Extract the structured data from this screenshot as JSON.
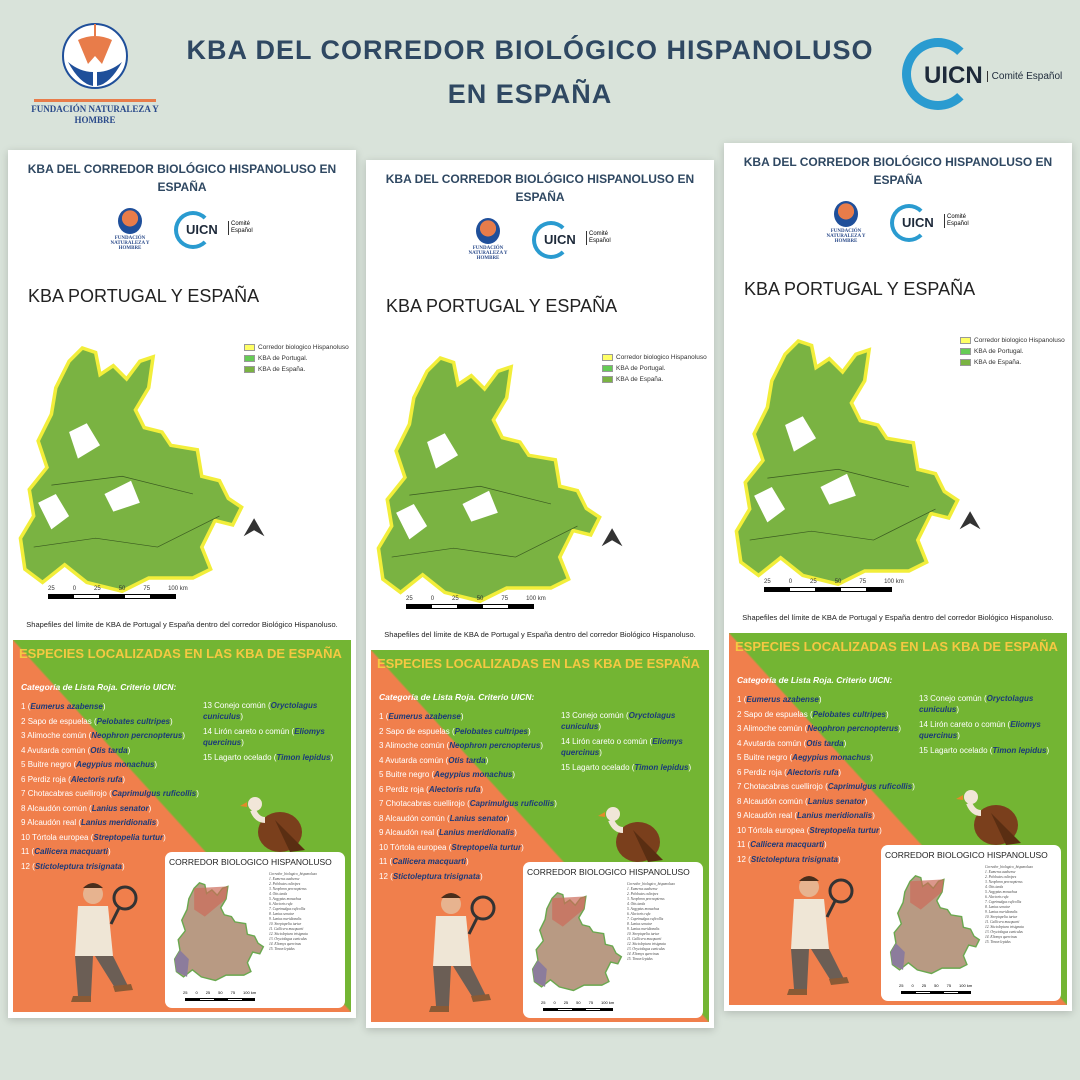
{
  "header": {
    "title": "KBA del corredor biológico hispanoluso en España",
    "fnh_logo_text": "FUNDACIÓN NATURALEZA Y HOMBRE",
    "uicn_logo_text": "UICN",
    "uicn_sub": "Comité Español"
  },
  "poster": {
    "title": "KBA del corredor biológico hispanoluso en España",
    "fnh_text": "FUNDACIÓN NATURALEZA Y HOMBRE",
    "uicn_text": "UICN",
    "uicn_sub": "Comité Español",
    "map_title": "KBA PORTUGAL Y ESPAÑA",
    "legend": [
      {
        "label": "Corredor biologico Hispanoluso",
        "color": "#ffff66"
      },
      {
        "label": "KBA de Portugal.",
        "color": "#66cc55"
      },
      {
        "label": "KBA de España.",
        "color": "#7ab342"
      }
    ],
    "scale_labels": [
      "25",
      "0",
      "25",
      "50",
      "75",
      "100 km"
    ],
    "caption": "Shapefiles del límite de KBA de Portugal y España dentro del corredor Biológico Hispanoluso.",
    "species_heading": "ESPECIES LOCALIZADAS EN LAS KBA DE ESPAÑA",
    "category_label": "Categoría de Lista Roja. Criterio UICN:",
    "species": [
      {
        "n": "1",
        "common": "",
        "sci": "Eumerus azabense"
      },
      {
        "n": "2",
        "common": "Sapo de espuelas",
        "sci": "Pelobates cultripes"
      },
      {
        "n": "3",
        "common": "Alimoche común",
        "sci": "Neophron percnopterus"
      },
      {
        "n": "4",
        "common": "Avutarda común",
        "sci": "Otis tarda"
      },
      {
        "n": "5",
        "common": "Buitre negro",
        "sci": "Aegypius monachus"
      },
      {
        "n": "6",
        "common": "Perdiz roja",
        "sci": "Alectoris rufa"
      },
      {
        "n": "7",
        "common": "Chotacabras cuellirojo",
        "sci": "Caprimulgus ruficollis"
      },
      {
        "n": "8",
        "common": "Alcaudón común",
        "sci": "Lanius senator"
      },
      {
        "n": "9",
        "common": "Alcaudón real",
        "sci": "Lanius meridionalis"
      },
      {
        "n": "10",
        "common": "Tórtola europea",
        "sci": "Streptopelia turtur"
      },
      {
        "n": "11",
        "common": "",
        "sci": "Callicera macquarti"
      },
      {
        "n": "12",
        "common": "",
        "sci": "Stictoleptura trisignata"
      },
      {
        "n": "13",
        "common": "Conejo común",
        "sci": "Oryctolagus cuniculus"
      },
      {
        "n": "14",
        "common": "Lirón careto o común",
        "sci": "Eliomys quercinus"
      },
      {
        "n": "15",
        "common": "Lagarto ocelado",
        "sci": "Timon lepidus"
      }
    ],
    "inner_map_title": "CORREDOR BIOLOGICO HISPANOLUSO",
    "inner_legend": [
      "Corredor_biologico_hispanoluso",
      "1. Eumerus azabense",
      "2. Pelobates cultripes",
      "3. Neophron percnopterus",
      "4. Otis tarda",
      "5. Aegypius monachus",
      "6. Alectoris rufa",
      "7. Caprimulgus ruficollis",
      "8. Lanius senator",
      "9. Lanius meridionalis",
      "10. Streptopelia turtur",
      "11. Callicera macquarti",
      "12. Stictoleptura trisignata",
      "13. Oryctolagus cuniculus",
      "14. Eliomys quercinus",
      "15. Timon lepidus"
    ],
    "inner_scale": [
      "25",
      "0",
      "25",
      "50",
      "75",
      "100 km"
    ]
  },
  "colors": {
    "background": "#d9e3da",
    "title": "#2f4862",
    "green": "#73b533",
    "orange": "#f07f4c",
    "heading_yellow": "#f5c842",
    "species_blue": "#1b3a7a"
  }
}
